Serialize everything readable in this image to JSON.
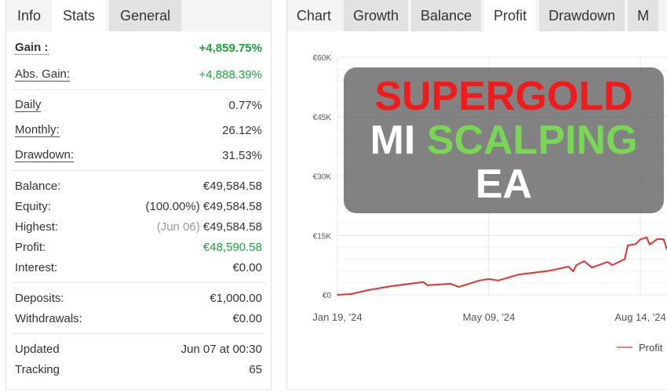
{
  "left_tabs": [
    "Info",
    "Stats",
    "General"
  ],
  "stats": {
    "gain": {
      "label": "Gain :",
      "value": "+4,859.75%"
    },
    "abs_gain": {
      "label": "Abs. Gain:",
      "value": "+4,888.39%"
    },
    "daily": {
      "label": "Daily",
      "value": "0.77%"
    },
    "monthly": {
      "label": "Monthly:",
      "value": "26.12%"
    },
    "drawdown": {
      "label": "Drawdown:",
      "value": "31.53%"
    },
    "balance": {
      "label": "Balance:",
      "value": "€49,584.58"
    },
    "equity": {
      "label": "Equity:",
      "note": "(100.00%)",
      "value": "€49,584.58"
    },
    "highest": {
      "label": "Highest:",
      "note": "(Jun 06)",
      "value": "€49,584.58"
    },
    "profit": {
      "label": "Profit:",
      "value": "€48,590.58"
    },
    "interest": {
      "label": "Interest:",
      "value": "€0.00"
    },
    "deposits": {
      "label": "Deposits:",
      "value": "€1,000.00"
    },
    "withdrawals": {
      "label": "Withdrawals:",
      "value": "€0.00"
    },
    "updated": {
      "label": "Updated",
      "value": "Jun 07 at 00:30"
    },
    "tracking": {
      "label": "Tracking",
      "value": "65"
    }
  },
  "right_tabs": [
    "Chart",
    "Growth",
    "Balance",
    "Profit",
    "Drawdown",
    "M"
  ],
  "banner": {
    "word1": "SUPERGOLD",
    "word2": "MI",
    "word3": "SCALPING",
    "word4": "EA",
    "colors": {
      "word1": "#f21a1a",
      "word2": "#ffffff",
      "word3": "#7ad655",
      "word4": "#ffffff"
    }
  },
  "chart_data": {
    "type": "line",
    "y_ticks": [
      "€0",
      "€15K",
      "€30K",
      "€45K",
      "€60K"
    ],
    "y_tick_values": [
      0,
      15000,
      30000,
      45000,
      60000
    ],
    "ylim": [
      0,
      60000
    ],
    "x_ticks": [
      "Jan 19, '24",
      "May 09, '24",
      "Aug 14, '24"
    ],
    "x_tick_dates": [
      "2024-01-19",
      "2024-05-09",
      "2024-08-14"
    ],
    "grid": true,
    "legend": {
      "position": "bottom-right",
      "entries": [
        "Profit"
      ]
    },
    "series": [
      {
        "name": "Profit",
        "color": "#e8302c",
        "points": [
          [
            "2024-01-19",
            0
          ],
          [
            "2024-01-29",
            200
          ],
          [
            "2024-02-11",
            1200
          ],
          [
            "2024-02-28",
            2200
          ],
          [
            "2024-03-22",
            3200
          ],
          [
            "2024-03-25",
            2400
          ],
          [
            "2024-04-11",
            2800
          ],
          [
            "2024-04-17",
            2000
          ],
          [
            "2024-05-02",
            3600
          ],
          [
            "2024-05-09",
            4000
          ],
          [
            "2024-05-15",
            3600
          ],
          [
            "2024-05-28",
            5100
          ],
          [
            "2024-06-17",
            6100
          ],
          [
            "2024-06-29",
            7100
          ],
          [
            "2024-07-02",
            5900
          ],
          [
            "2024-07-04",
            7500
          ],
          [
            "2024-07-09",
            8500
          ],
          [
            "2024-07-14",
            6900
          ],
          [
            "2024-07-24",
            8300
          ],
          [
            "2024-07-27",
            7500
          ],
          [
            "2024-08-04",
            9000
          ],
          [
            "2024-08-06",
            12500
          ],
          [
            "2024-08-11",
            12800
          ],
          [
            "2024-08-14",
            14000
          ],
          [
            "2024-08-18",
            14500
          ],
          [
            "2024-08-20",
            12700
          ],
          [
            "2024-08-25",
            14100
          ],
          [
            "2024-08-29",
            14000
          ],
          [
            "2024-08-31",
            11500
          ]
        ]
      }
    ]
  }
}
